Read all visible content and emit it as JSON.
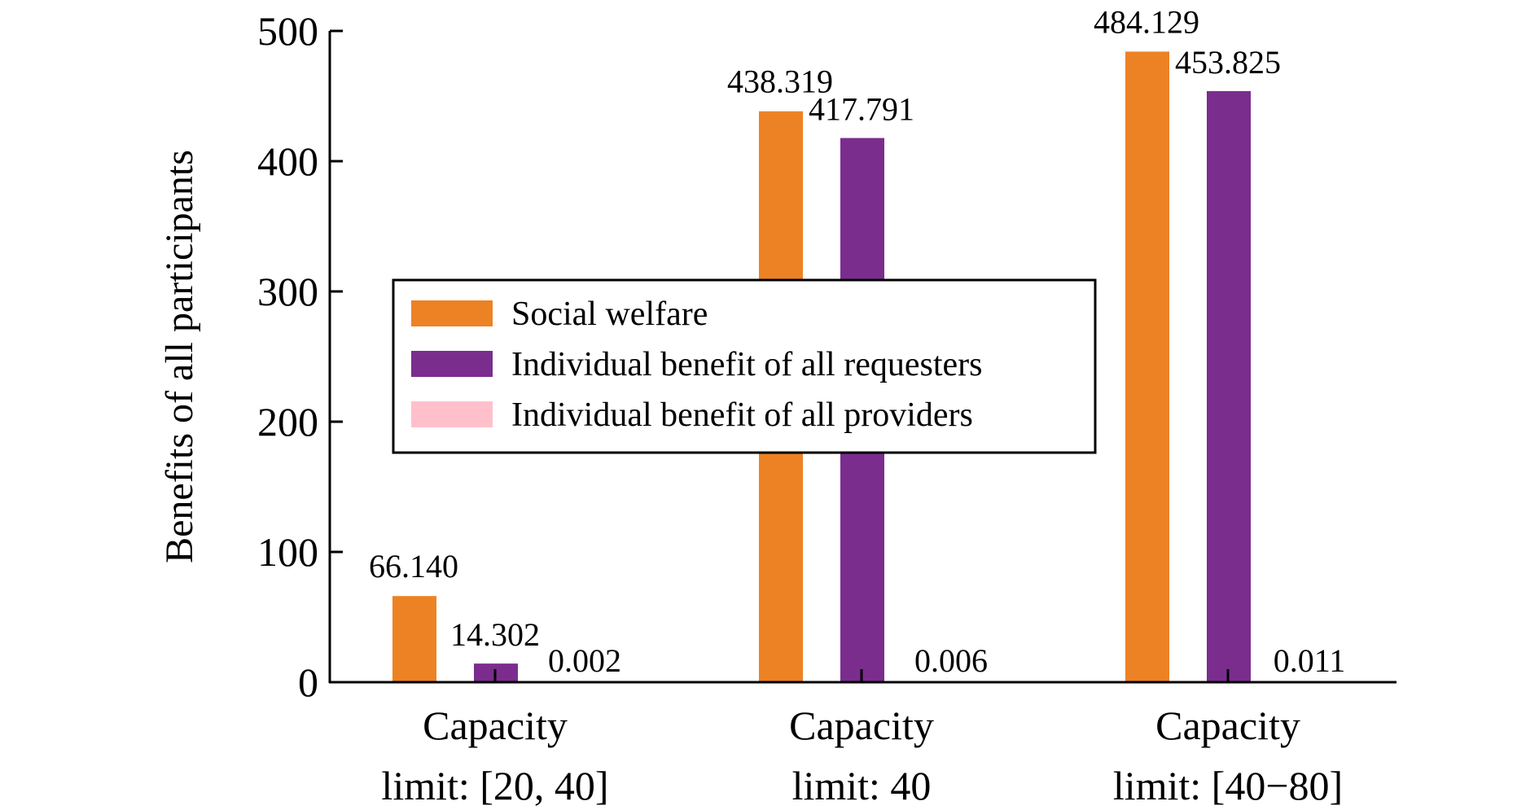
{
  "chart_data": {
    "type": "bar",
    "ylabel": "Benefits of all participants",
    "ylim": [
      0,
      500
    ],
    "yticks": [
      "0",
      "100",
      "200",
      "300",
      "400",
      "500"
    ],
    "categories": [
      {
        "line1": "Capacity",
        "line2": "limit: [20, 40]"
      },
      {
        "line1": "Capacity",
        "line2": "limit: 40"
      },
      {
        "line1": "Capacity",
        "line2": "limit: [40−80]"
      }
    ],
    "series": [
      {
        "name": "Social welfare",
        "color": "#ED8224",
        "values": [
          66.14,
          438.319,
          484.129
        ],
        "labels": [
          "66.140",
          "438.319",
          "484.129"
        ]
      },
      {
        "name": "Individual benefit of all requesters",
        "color": "#7B2D8E",
        "values": [
          14.302,
          417.791,
          453.825
        ],
        "labels": [
          "14.302",
          "417.791",
          "453.825"
        ]
      },
      {
        "name": "Individual benefit of all providers",
        "color": "#FFC0CB",
        "values": [
          0.002,
          0.006,
          0.011
        ],
        "labels": [
          "0.002",
          "0.006",
          "0.011"
        ]
      }
    ],
    "legend_position": "center-left",
    "grid": false
  }
}
